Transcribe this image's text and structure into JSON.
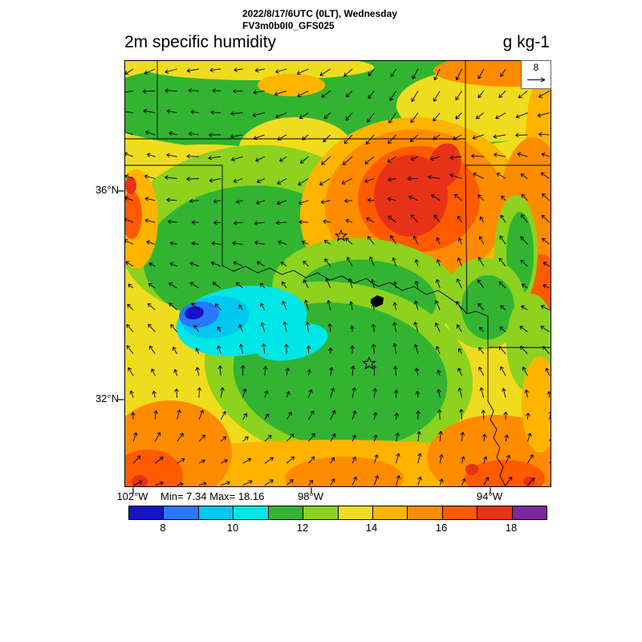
{
  "header": {
    "title_line1": "2022/8/17/6UTC (0LT), Wednesday",
    "title_line2": "FV3m0b0I0_GFS025",
    "variable": "2m specific humidity",
    "units": "g kg-1"
  },
  "map": {
    "min_max_label": "Min= 7.34 Max= 18.16",
    "reference_vector_label": "8",
    "lat_ticks": [
      {
        "label": "36°N"
      },
      {
        "label": "32°N"
      }
    ],
    "lon_ticks": [
      {
        "label": "102°W"
      },
      {
        "label": "98°W"
      },
      {
        "label": "94°W"
      }
    ]
  },
  "chart_data": {
    "type": "heatmap",
    "title": "2m specific humidity",
    "units": "g kg-1",
    "valid_time": "2022/8/17/6UTC (0LT), Wednesday",
    "model": "FV3m0b0I0_GFS025",
    "stat_min": 7.34,
    "stat_max": 18.16,
    "colorbar_levels": [
      8,
      10,
      12,
      14,
      16,
      18
    ],
    "colorbar_value_range": [
      7,
      19
    ],
    "colorbar_colors": [
      "#1414c8",
      "#2878ff",
      "#00c8f0",
      "#00e6e6",
      "#32b432",
      "#8cd21e",
      "#f0dc1e",
      "#ffb400",
      "#ff8c00",
      "#ff5a00",
      "#e83218",
      "#7c28a0"
    ],
    "wind_reference_value": 8,
    "x_tick_labels": [
      "102°W",
      "98°W",
      "94°W"
    ],
    "y_tick_labels": [
      "36°N",
      "32°N"
    ],
    "legend_position": "bottom",
    "overlays": "wind vector arrows, state borders, star markers"
  }
}
